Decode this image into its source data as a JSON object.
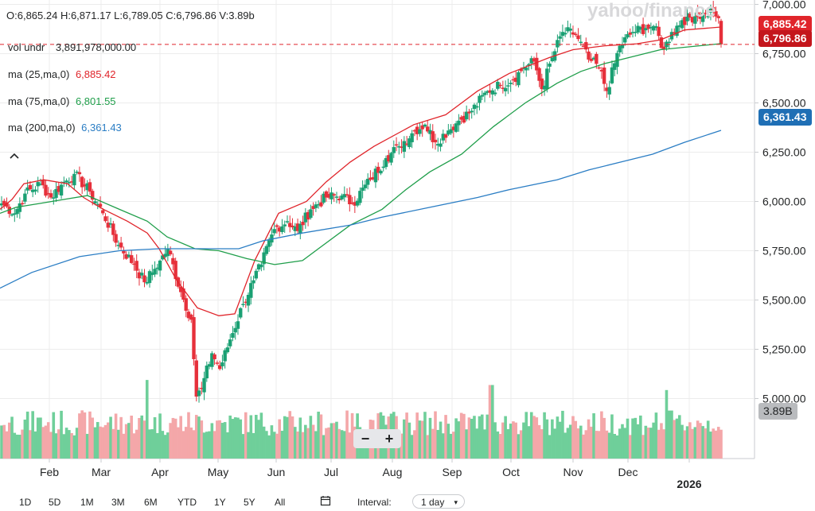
{
  "header": {
    "ohlc": "O:6,865.24  H:6,871.17  L:6,789.05  C:6,796.86  V:3.89b"
  },
  "watermark": "yahoo/finance",
  "legend": [
    {
      "label": "vol undr",
      "value": "3,891,978,000.00",
      "color": "#232526"
    },
    {
      "label": "ma (25,ma,0)",
      "value": "6,885.42",
      "color": "#e0252b"
    },
    {
      "label": "ma (75,ma,0)",
      "value": "6,801.55",
      "color": "#1f9e4a"
    },
    {
      "label": "ma (200,ma,0)",
      "value": "6,361.43",
      "color": "#2a7dc4"
    }
  ],
  "collapse_icon": "chevron-up-icon",
  "price_tags": {
    "ma25": {
      "text": "6,885.42",
      "color": "#e0252b"
    },
    "close": {
      "text": "6,796.86",
      "color": "#c4161c"
    },
    "ma200": {
      "text": "6,361.43",
      "color": "#1f6fb5"
    },
    "volume": {
      "text": "3.89B",
      "color": "#b9bbbe"
    }
  },
  "zoom": {
    "minus": "−",
    "plus": "+"
  },
  "toolbar": {
    "ranges": [
      "1D",
      "5D",
      "1M",
      "3M",
      "6M",
      "YTD",
      "1Y",
      "5Y",
      "All"
    ],
    "calendar_icon": "calendar-icon",
    "interval_label": "Interval:",
    "interval_value": "1 day"
  },
  "chart_data": {
    "type": "candlestick",
    "price_axis_ticks": [
      "7,000.00",
      "6,750.00",
      "6,500.00",
      "6,250.00",
      "6,000.00",
      "5,750.00",
      "5,500.00",
      "5,250.00",
      "5,000.00"
    ],
    "price_axis_range": [
      4880,
      7030
    ],
    "month_labels": [
      "Feb",
      "Mar",
      "Apr",
      "May",
      "Jun",
      "Jul",
      "Aug",
      "Sep",
      "Oct",
      "Nov",
      "Dec",
      "2026"
    ],
    "close_line": 6796.86,
    "colors": {
      "up": "#1aa073",
      "down": "#e6303b",
      "vol_up": "#6fcf9a",
      "vol_down": "#f4a7a9",
      "grid": "#ececec"
    },
    "price_path": [
      [
        5990,
        0
      ],
      [
        5940,
        5
      ],
      [
        6040,
        4
      ],
      [
        6090,
        6
      ],
      [
        6020,
        4
      ],
      [
        6085,
        4
      ],
      [
        6140,
        5
      ],
      [
        6050,
        6
      ],
      [
        5940,
        5
      ],
      [
        5780,
        6
      ],
      [
        5680,
        6
      ],
      [
        5590,
        4
      ],
      [
        5640,
        3
      ],
      [
        5700,
        3
      ],
      [
        5760,
        3
      ],
      [
        5540,
        5
      ],
      [
        5400,
        4
      ],
      [
        5010,
        2
      ],
      [
        5050,
        2
      ],
      [
        5230,
        4
      ],
      [
        5150,
        3
      ],
      [
        5300,
        4
      ],
      [
        5480,
        5
      ],
      [
        5600,
        4
      ],
      [
        5680,
        3
      ],
      [
        5860,
        5
      ],
      [
        5900,
        5
      ],
      [
        5850,
        4
      ],
      [
        5960,
        5
      ],
      [
        6020,
        6
      ],
      [
        6030,
        6
      ],
      [
        5990,
        4
      ],
      [
        6110,
        7
      ],
      [
        6220,
        6
      ],
      [
        6280,
        5
      ],
      [
        6360,
        6
      ],
      [
        6390,
        4
      ],
      [
        6300,
        4
      ],
      [
        6360,
        5
      ],
      [
        6410,
        4
      ],
      [
        6460,
        5
      ],
      [
        6560,
        6
      ],
      [
        6590,
        5
      ],
      [
        6620,
        5
      ],
      [
        6680,
        4
      ],
      [
        6710,
        4
      ],
      [
        6570,
        3
      ],
      [
        6730,
        4
      ],
      [
        6860,
        4
      ],
      [
        6850,
        5
      ],
      [
        6720,
        5
      ],
      [
        6680,
        4
      ],
      [
        6560,
        3
      ],
      [
        6790,
        5
      ],
      [
        6860,
        5
      ],
      [
        6880,
        5
      ],
      [
        6890,
        3
      ],
      [
        6770,
        4
      ],
      [
        6860,
        3
      ],
      [
        6920,
        4
      ],
      [
        6940,
        5
      ],
      [
        6950,
        4
      ],
      [
        6970,
        3
      ],
      [
        6930,
        2
      ],
      [
        6797,
        1
      ]
    ],
    "major_spikes": [
      {
        "at": 184,
        "height": 0.7
      },
      {
        "at": 617,
        "height": 0.65
      },
      {
        "at": 838,
        "height": 0.6
      }
    ],
    "ma": {
      "ma25": [
        [
          5960,
          0
        ],
        [
          6010,
          15
        ],
        [
          6090,
          30
        ],
        [
          6110,
          55
        ],
        [
          6090,
          85
        ],
        [
          6020,
          105
        ],
        [
          5960,
          130
        ],
        [
          5900,
          160
        ],
        [
          5840,
          185
        ],
        [
          5760,
          200
        ],
        [
          5600,
          222
        ],
        [
          5460,
          248
        ],
        [
          5420,
          275
        ],
        [
          5430,
          295
        ],
        [
          5700,
          320
        ],
        [
          5940,
          350
        ],
        [
          6000,
          385
        ],
        [
          6100,
          410
        ],
        [
          6200,
          440
        ],
        [
          6280,
          470
        ],
        [
          6390,
          520
        ],
        [
          6440,
          560
        ],
        [
          6560,
          600
        ],
        [
          6650,
          640
        ],
        [
          6730,
          690
        ],
        [
          6770,
          720
        ],
        [
          6790,
          760
        ],
        [
          6800,
          800
        ],
        [
          6820,
          830
        ],
        [
          6870,
          860
        ],
        [
          6885,
          906
        ]
      ],
      "ma75": [
        [
          5940,
          0
        ],
        [
          5970,
          20
        ],
        [
          5990,
          50
        ],
        [
          6010,
          80
        ],
        [
          6030,
          110
        ],
        [
          5960,
          150
        ],
        [
          5900,
          185
        ],
        [
          5820,
          210
        ],
        [
          5760,
          245
        ],
        [
          5750,
          275
        ],
        [
          5710,
          310
        ],
        [
          5680,
          345
        ],
        [
          5700,
          380
        ],
        [
          5760,
          400
        ],
        [
          5880,
          440
        ],
        [
          5960,
          480
        ],
        [
          6060,
          510
        ],
        [
          6150,
          540
        ],
        [
          6240,
          580
        ],
        [
          6380,
          620
        ],
        [
          6500,
          660
        ],
        [
          6600,
          700
        ],
        [
          6660,
          730
        ],
        [
          6700,
          760
        ],
        [
          6730,
          790
        ],
        [
          6770,
          830
        ],
        [
          6801,
          906
        ]
      ],
      "ma200": [
        [
          5560,
          0
        ],
        [
          5640,
          40
        ],
        [
          5720,
          100
        ],
        [
          5750,
          150
        ],
        [
          5760,
          200
        ],
        [
          5760,
          250
        ],
        [
          5760,
          300
        ],
        [
          5800,
          330
        ],
        [
          5840,
          380
        ],
        [
          5880,
          440
        ],
        [
          5920,
          480
        ],
        [
          5970,
          540
        ],
        [
          6020,
          600
        ],
        [
          6060,
          640
        ],
        [
          6110,
          700
        ],
        [
          6160,
          740
        ],
        [
          6200,
          780
        ],
        [
          6240,
          820
        ],
        [
          6300,
          860
        ],
        [
          6361,
          906
        ]
      ]
    }
  }
}
